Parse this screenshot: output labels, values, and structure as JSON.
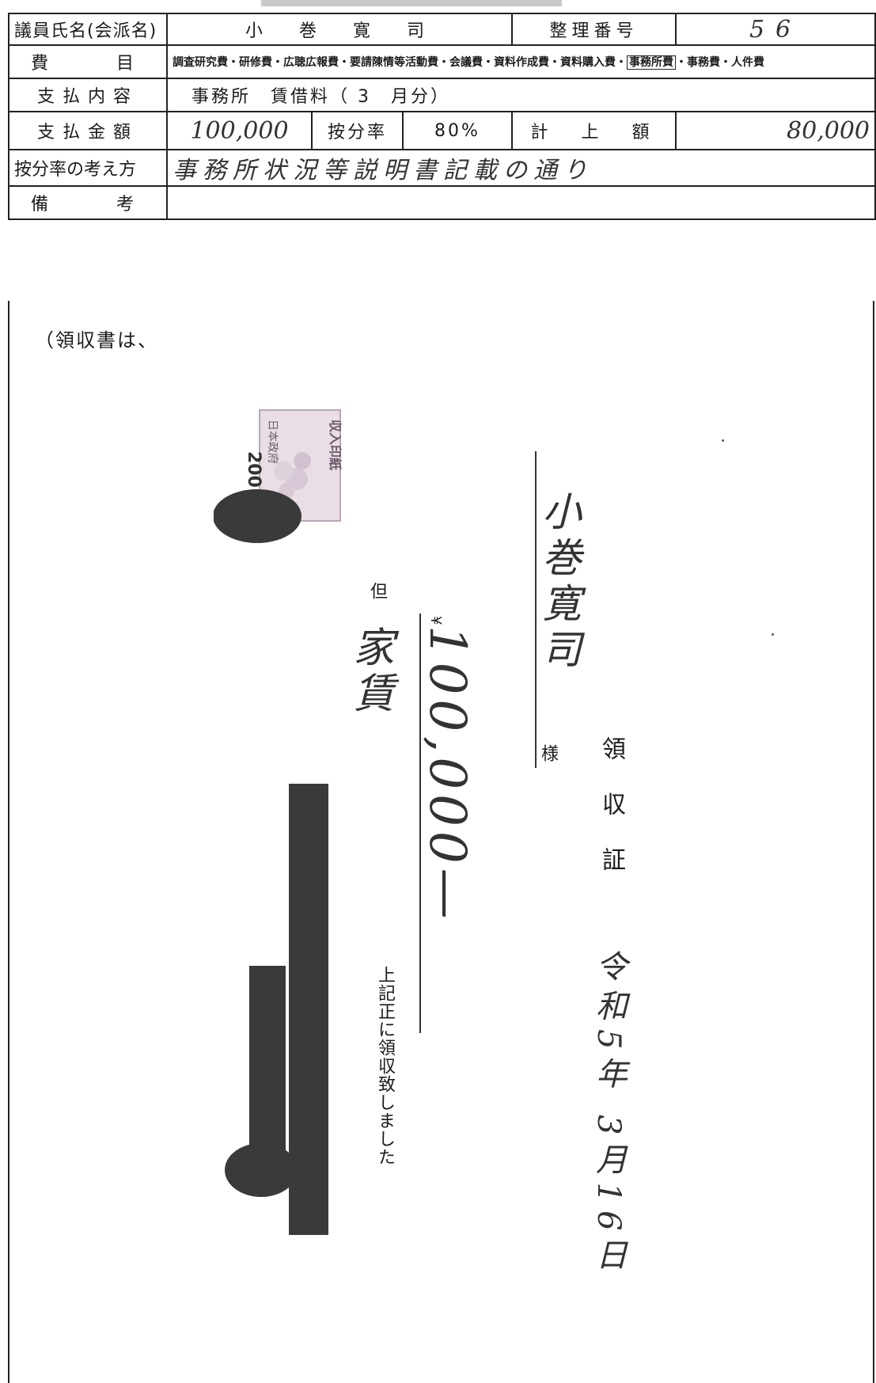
{
  "form": {
    "header": {
      "member_label": "議員氏名(会派名)",
      "member_name": "小　巻　寛　司",
      "number_label": "整理番号",
      "number_value": "56"
    },
    "category": {
      "label": "費　　目",
      "items_before": "調査研究費・研修費・広聴広報費・要請陳情等活動費・会議費・資料作成費・資料購入費・",
      "selected": "事務所費",
      "items_after": "・事務費・人件費"
    },
    "content": {
      "label": "支払内容",
      "value": "事務所　賃借料（ 3　月分）"
    },
    "amount": {
      "label": "支払金額",
      "value": "100,000",
      "ratio_label": "按分率",
      "ratio_value": "80%",
      "recorded_label": "計　上　額",
      "recorded_value": "80,000"
    },
    "basis": {
      "label": "按分率の考え方",
      "value": "事務所状況等説明書記載の通り"
    },
    "remarks": {
      "label": "備　　考",
      "value": ""
    },
    "receipt_note": "（領収書は、"
  },
  "receipt": {
    "title": "領収証",
    "date": "令和5年 3月16日",
    "recipient": "小巻寛司",
    "honorific": "様",
    "yen_mark": "¥",
    "amount": "100,000—",
    "tada_label": "但",
    "purpose": "家賃",
    "acknowledgement": "上記正に領収致しました",
    "stamp_text": "収入印紙",
    "stamp_country": "日本政府",
    "stamp_value": "200"
  }
}
